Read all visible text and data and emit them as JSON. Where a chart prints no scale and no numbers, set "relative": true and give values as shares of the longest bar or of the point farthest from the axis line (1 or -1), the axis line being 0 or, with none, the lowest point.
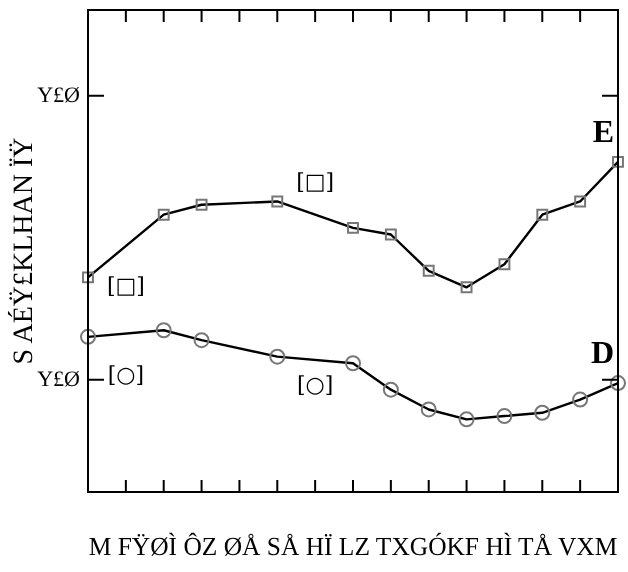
{
  "chart_data": {
    "type": "line",
    "relative": true,
    "ylabel": "S AÉŸ£KLHAN ÏŸ",
    "xlabel": "M FŸØÌ ÔZ ØÅ SÅ HÏ LZ TXGÓKF HÌ TÅ VXM",
    "categories": [
      null,
      null,
      null,
      null,
      null,
      null,
      null,
      null,
      null,
      null,
      null,
      null,
      null,
      null,
      null
    ],
    "grid": false,
    "line_style": "solid",
    "series": [
      {
        "name": "E",
        "color": "#000000",
        "marker": "square",
        "values": [
          0.65,
          null,
          0.84,
          0.87,
          null,
          0.88,
          null,
          0.8,
          0.78,
          0.67,
          0.62,
          0.69,
          0.84,
          0.88,
          1
        ]
      },
      {
        "name": "D",
        "color": "#000000",
        "marker": "circle",
        "values": [
          0.47,
          null,
          0.49,
          0.46,
          null,
          0.41,
          null,
          0.39,
          0.31,
          0.25,
          0.22,
          0.23,
          0.24,
          0.28,
          0.33
        ]
      }
    ],
    "annotations": [
      "Y£Ø",
      "Y£Ø",
      "[□]",
      "[□]",
      "[○]",
      "[○]"
    ]
  }
}
